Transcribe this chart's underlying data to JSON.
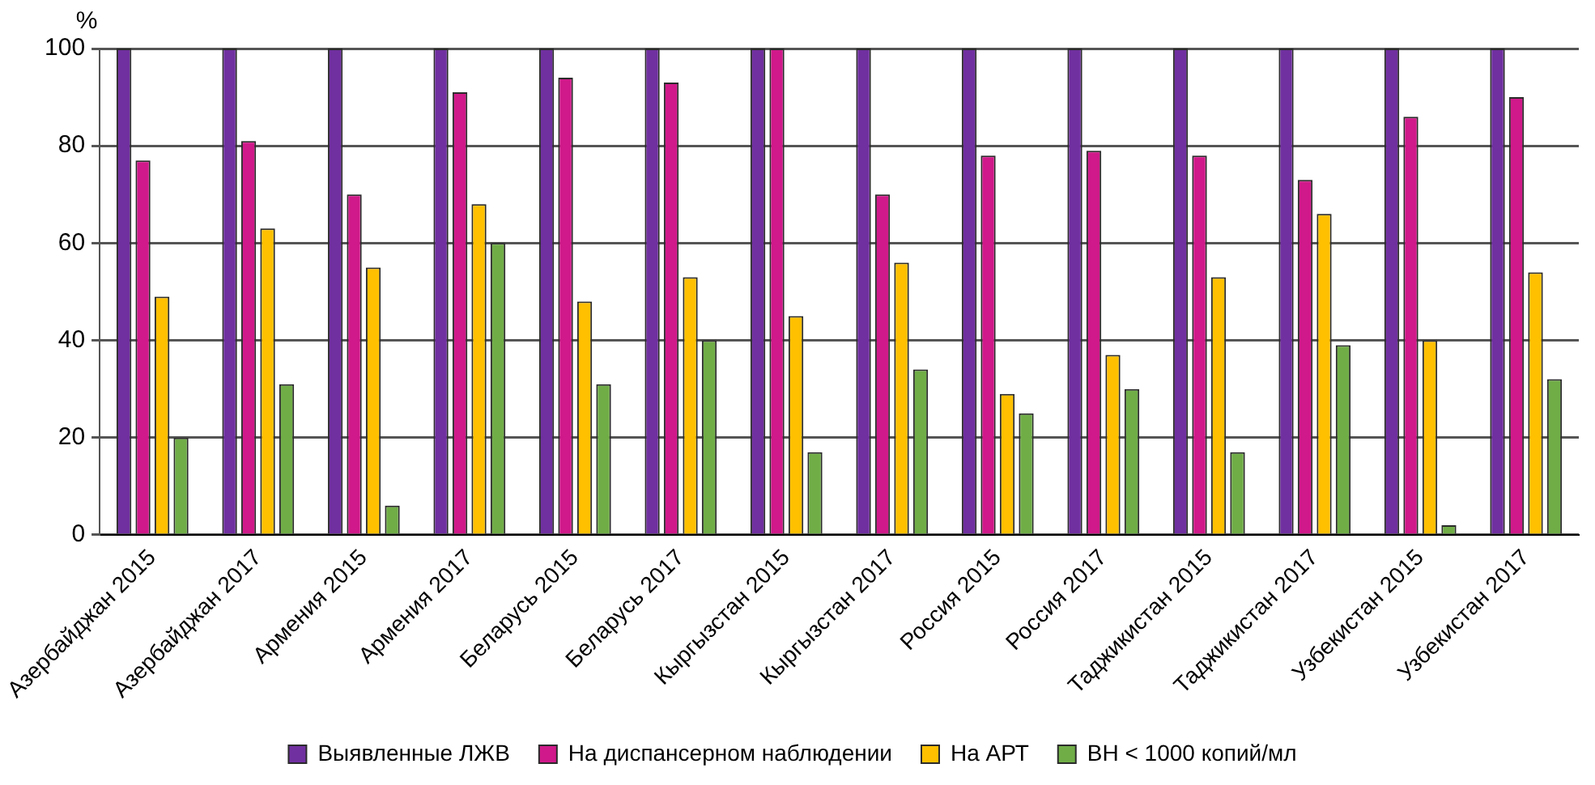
{
  "chart_data": {
    "type": "bar",
    "ylabel": "%",
    "categories": [
      "Азербайджан 2015",
      "Азербайджан 2017",
      "Армения 2015",
      "Армения 2017",
      "Беларусь 2015",
      "Беларусь 2017",
      "Кыргызстан 2015",
      "Кыргызстан 2017",
      "Россия 2015",
      "Россия 2017",
      "Таджикистан 2015",
      "Таджикистан 2017",
      "Узбекистан 2015",
      "Узбекистан 2017"
    ],
    "series": [
      {
        "name": "Выявленные ЛЖВ",
        "color": "#7030a0",
        "values": [
          100,
          100,
          100,
          100,
          100,
          100,
          100,
          100,
          100,
          100,
          100,
          100,
          100,
          100
        ]
      },
      {
        "name": "На диспансерном наблюдении",
        "color": "#d0198a",
        "values": [
          77,
          81,
          70,
          91,
          94,
          93,
          100,
          70,
          78,
          79,
          78,
          73,
          86,
          90
        ]
      },
      {
        "name": "На АРТ",
        "color": "#ffc000",
        "values": [
          49,
          63,
          55,
          68,
          48,
          53,
          45,
          56,
          29,
          37,
          53,
          66,
          40,
          54
        ]
      },
      {
        "name": "ВН < 1000 копий/мл",
        "color": "#70ad47",
        "values": [
          20,
          31,
          6,
          60,
          31,
          40,
          17,
          34,
          25,
          30,
          17,
          39,
          2,
          32
        ]
      }
    ],
    "ylim": [
      0,
      100
    ],
    "yticks": [
      0,
      20,
      40,
      60,
      80,
      100
    ],
    "grid": "y",
    "legend": "bottom"
  }
}
